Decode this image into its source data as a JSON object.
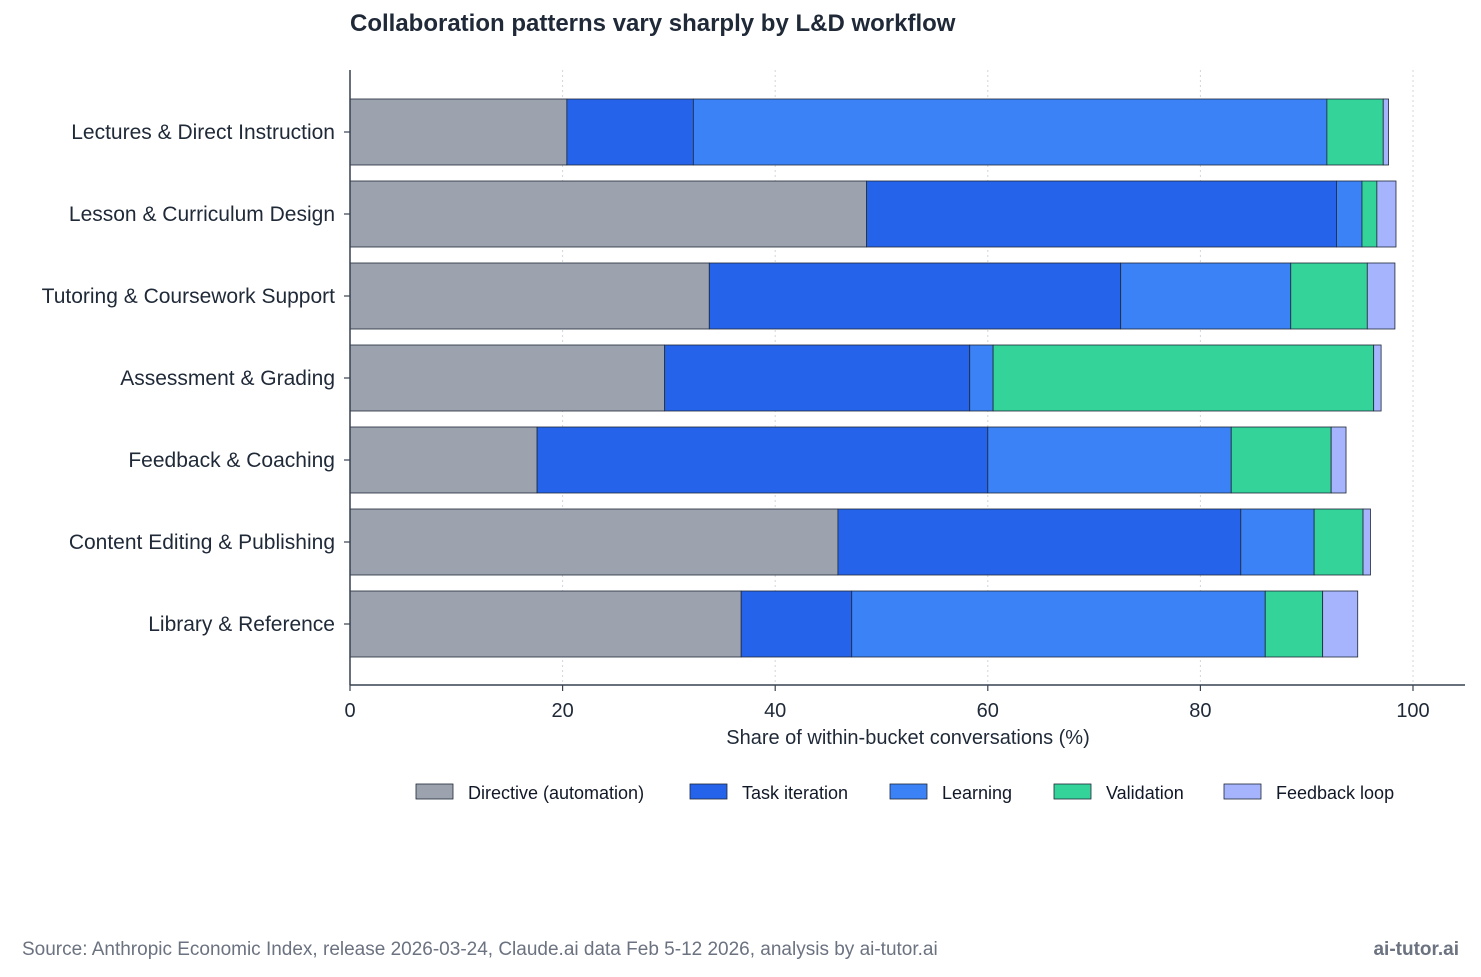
{
  "chart_data": {
    "type": "bar",
    "orientation": "horizontal",
    "stacked": true,
    "title": "Collaboration patterns vary sharply by L&D workflow",
    "xlabel": "Share of within-bucket conversations (%)",
    "ylabel": "",
    "xlim": [
      0,
      105
    ],
    "xticks": [
      0,
      20,
      40,
      60,
      80,
      100
    ],
    "grid": "vertical dotted",
    "legend_position": "bottom",
    "categories": [
      "Lectures & Direct Instruction",
      "Lesson & Curriculum Design",
      "Tutoring & Coursework Support",
      "Assessment & Grading",
      "Feedback & Coaching",
      "Content Editing & Publishing",
      "Library & Reference"
    ],
    "series": [
      {
        "name": "Directive (automation)",
        "color": "#9ca3af",
        "values": [
          20.4,
          48.6,
          33.8,
          29.6,
          17.6,
          45.9,
          36.8
        ]
      },
      {
        "name": "Task iteration",
        "color": "#2563eb",
        "values": [
          11.9,
          44.2,
          38.7,
          28.7,
          42.4,
          37.9,
          10.4
        ]
      },
      {
        "name": "Learning",
        "color": "#3b82f6",
        "values": [
          59.6,
          2.4,
          16.0,
          2.2,
          22.9,
          6.9,
          38.9
        ]
      },
      {
        "name": "Validation",
        "color": "#34d399",
        "values": [
          5.3,
          1.4,
          7.2,
          35.8,
          9.4,
          4.6,
          5.4
        ]
      },
      {
        "name": "Feedback loop",
        "color": "#a5b4fc",
        "values": [
          0.5,
          1.8,
          2.6,
          0.7,
          1.4,
          0.7,
          3.3
        ]
      }
    ]
  },
  "footer": {
    "source": "Source: Anthropic Economic Index, release 2026-03-24, Claude.ai data Feb 5-12 2026, analysis by ai-tutor.ai",
    "brand": "ai-tutor.ai"
  }
}
